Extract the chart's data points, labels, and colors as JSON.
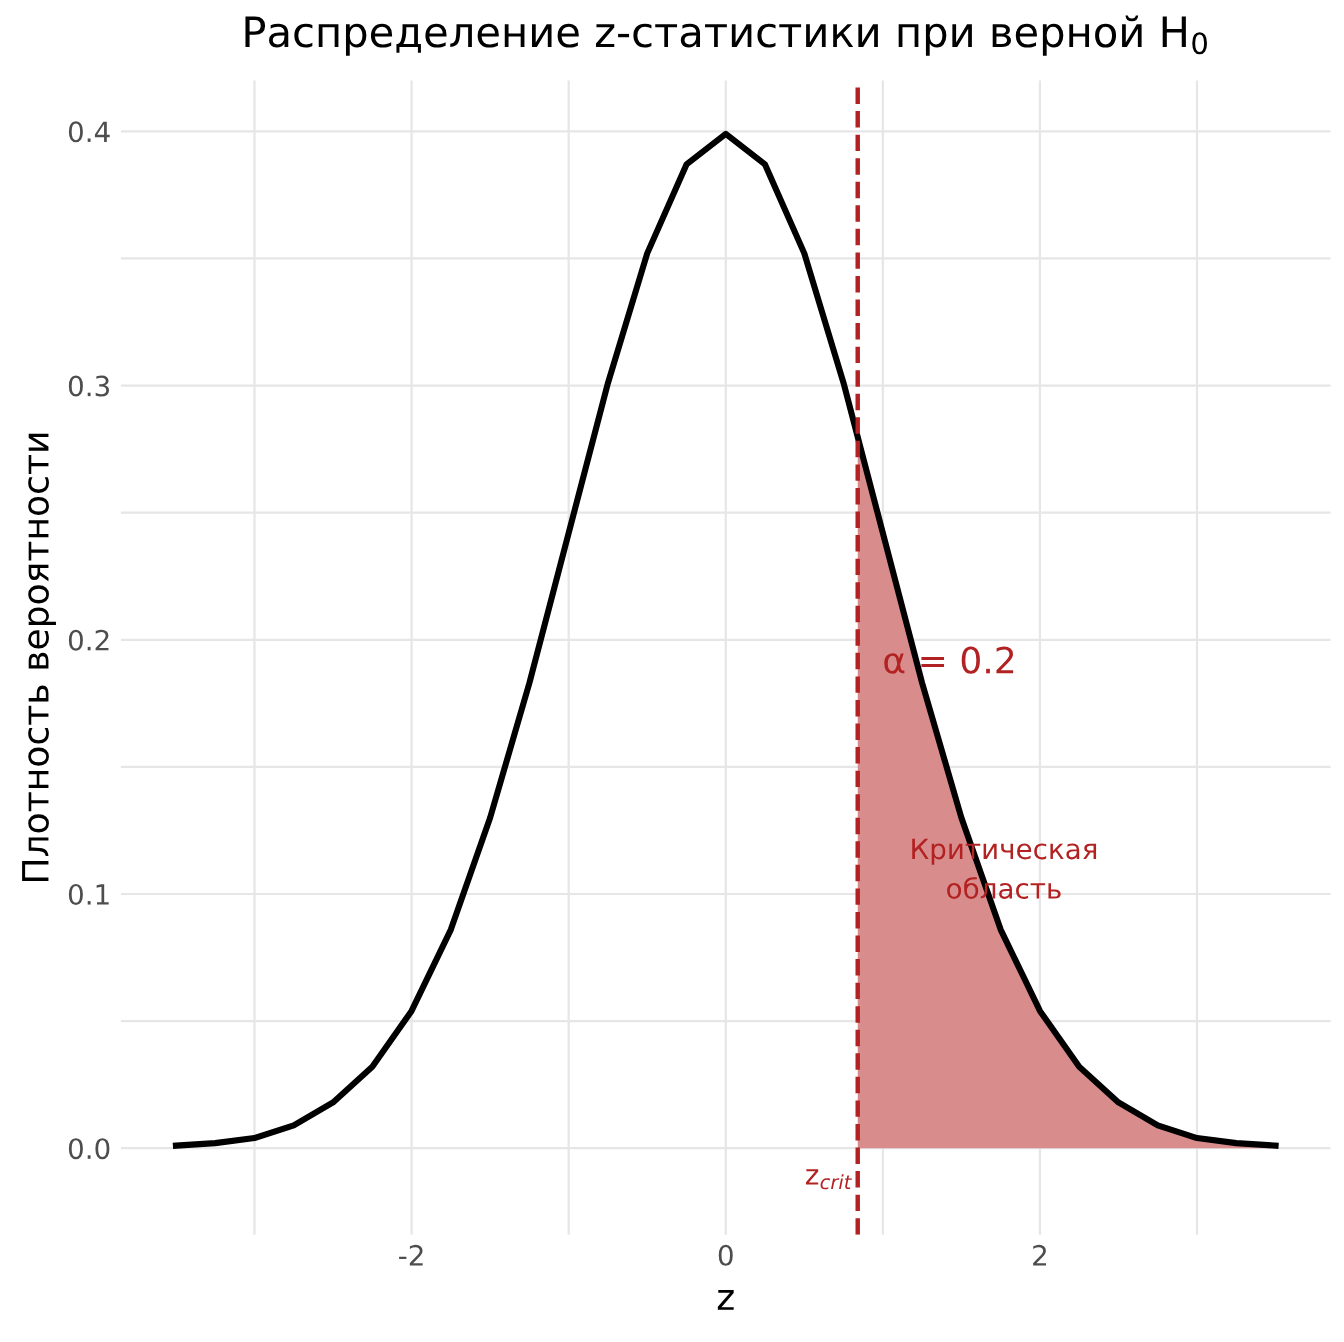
{
  "chart_data": {
    "type": "line",
    "title": "Распределение z-статистики при верной H$_{0}$",
    "xlabel": "z",
    "ylabel": "Плотность вероятности",
    "series": [
      {
        "type": "area",
        "color": "#d98c8c",
        "x": [
          0.84,
          1.0,
          1.25,
          1.5,
          1.75,
          2.0,
          2.25,
          2.5,
          2.75,
          3.0,
          3.25,
          3.5
        ],
        "values": [
          0.28,
          0.242,
          0.183,
          0.13,
          0.086,
          0.054,
          0.032,
          0.018,
          0.009,
          0.004,
          0.002,
          0.001
        ]
      },
      {
        "color": "#000000",
        "x": [
          -3.5,
          -3.25,
          -3.0,
          -2.75,
          -2.5,
          -2.25,
          -2.0,
          -1.75,
          -1.5,
          -1.25,
          -1.0,
          -0.75,
          -0.5,
          -0.25,
          0.0,
          0.25,
          0.5,
          0.75,
          1.0,
          1.25,
          1.5,
          1.75,
          2.0,
          2.25,
          2.5,
          2.75,
          3.0,
          3.25,
          3.5
        ],
        "values": [
          0.001,
          0.002,
          0.004,
          0.009,
          0.018,
          0.032,
          0.054,
          0.086,
          0.13,
          0.183,
          0.242,
          0.301,
          0.352,
          0.387,
          0.399,
          0.387,
          0.352,
          0.301,
          0.242,
          0.183,
          0.13,
          0.086,
          0.054,
          0.032,
          0.018,
          0.009,
          0.004,
          0.002,
          0.001
        ]
      }
    ],
    "ref_lines": [
      {
        "axis": "x",
        "value": 0.84,
        "color": "#b22222",
        "line_style": "dashed"
      }
    ],
    "annotations": [
      "α = 0.2",
      "Критическая\nобласть",
      "z$_{crit}$"
    ],
    "xlim": [
      -3.85,
      3.85
    ],
    "ylim": [
      -0.034,
      0.42
    ],
    "xticks": [
      {
        "value": -3,
        "label": null
      },
      -2,
      {
        "value": -1,
        "label": null
      },
      0,
      {
        "value": 1,
        "label": null
      },
      2,
      {
        "value": 3,
        "label": null
      }
    ],
    "yticks": [
      {
        "value": 0.0,
        "label": "0.0"
      },
      {
        "value": 0.05,
        "label": null
      },
      0.1,
      {
        "value": 0.15,
        "label": null
      },
      0.2,
      {
        "value": 0.25,
        "label": null
      },
      0.3,
      {
        "value": 0.35,
        "label": null
      },
      0.4
    ],
    "grid": true,
    "marker": "none",
    "line_style": "solid"
  }
}
